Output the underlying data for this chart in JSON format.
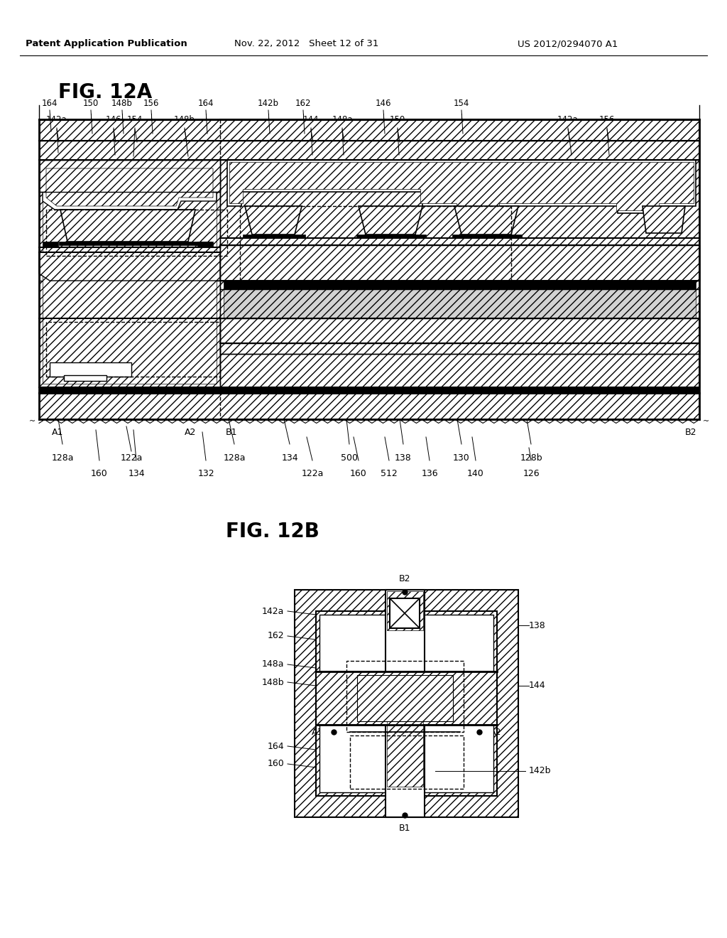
{
  "background_color": "#ffffff",
  "header_left": "Patent Application Publication",
  "header_center": "Nov. 22, 2012   Sheet 12 of 31",
  "header_right": "US 2012/0294070 A1",
  "fig12a_label": "FIG. 12A",
  "fig12b_label": "FIG. 12B"
}
